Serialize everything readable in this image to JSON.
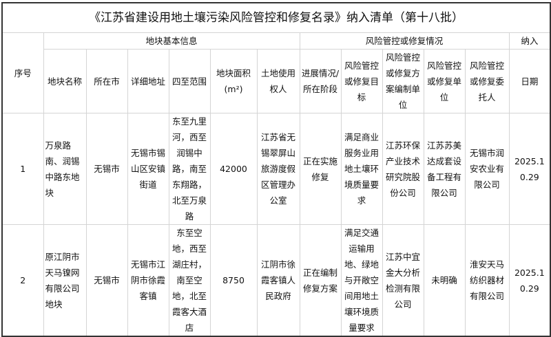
{
  "title": "《江苏省建设用地土壤污染风险管控和修复名录》纳入清单（第十八批）",
  "groups": {
    "seq": "序号",
    "basic": "地块基本信息",
    "risk": "风险管控或修复情况",
    "include": "纳入"
  },
  "columns": {
    "name": "地块名称",
    "city": "所在市",
    "address": "详细地址",
    "bounds": "四至范围",
    "area": "地块面积",
    "area_unit": "(m²)",
    "owner": "土地使用权人",
    "stage": "进展情况/所在阶段",
    "goal": "风险管控或修复目标",
    "planner": "风险管控或修复方案编制单位",
    "contractor": "风险管控或修复单位",
    "client": "风险管控或修复委托人",
    "date": "日期"
  },
  "rows": [
    {
      "seq": "1",
      "name": "万泉路南、润锡中路东地块",
      "city": "无锡市",
      "address": "无锡市锡山区安镇街道",
      "bounds": "东至九里河，西至润锡中路，南至东翔路，北至万泉路",
      "area": "42000",
      "owner": "江苏省无锡翠屏山旅游度假区管理办公室",
      "stage": "正在实施修复",
      "goal": "满足商业服务业用地土壤环境质量要求",
      "planner": "江苏环保产业技术研究院股份公司",
      "contractor": "江苏苏美达成套设备工程有限公司",
      "client": "无锡市润安农业有限公司",
      "date": "2025.10.29"
    },
    {
      "seq": "2",
      "name": "原江阴市天马镍网有限公司地块",
      "city": "无锡市",
      "address": "无锡市江阴市徐霞客镇",
      "bounds": "东至空地，西至湖庄村，南至空地，北至霞客大酒店",
      "area": "8750",
      "owner": "江阴市徐霞客镇人民政府",
      "stage": "正在编制修复方案",
      "goal": "满足交通运输用地、绿地与开敞空间用地土壤环境质量要求",
      "planner": "江苏中宜金大分析检测有限公司",
      "contractor": "未明确",
      "client": "淮安天马纺织器材有限公司",
      "date": "2025.10.29"
    }
  ]
}
